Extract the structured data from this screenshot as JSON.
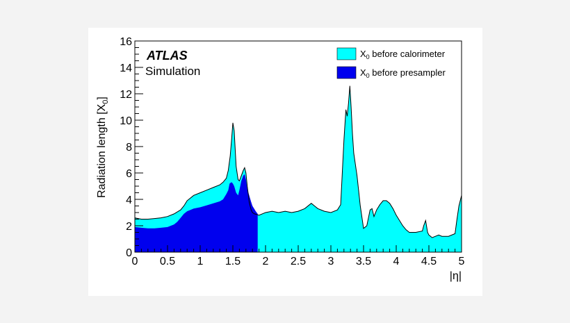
{
  "chart_data": {
    "type": "area",
    "xlabel": "|η|",
    "ylabel": "Radiation length [X",
    "ylabel_sub": "0",
    "ylabel_suffix": "]",
    "xlim": [
      0,
      5
    ],
    "ylim": [
      0,
      16
    ],
    "xticks": [
      "0",
      "0.5",
      "1",
      "1.5",
      "2",
      "2.5",
      "3",
      "3.5",
      "4",
      "4.5",
      "5"
    ],
    "yticks": [
      "0",
      "2",
      "4",
      "6",
      "8",
      "10",
      "12",
      "14",
      "16"
    ],
    "annotation_bold": "ATLAS",
    "annotation": "Simulation",
    "legend_position": "top-right",
    "colors": {
      "calorimeter": "#00ffff",
      "presampler": "#0000ee",
      "outline": "#000000"
    },
    "series": [
      {
        "name": "X",
        "name_sub": "0",
        "name_suffix": " before calorimeter",
        "x": [
          0,
          0.05,
          0.1,
          0.2,
          0.3,
          0.4,
          0.5,
          0.6,
          0.7,
          0.75,
          0.8,
          0.9,
          1.0,
          1.1,
          1.2,
          1.3,
          1.35,
          1.4,
          1.43,
          1.46,
          1.48,
          1.5,
          1.52,
          1.55,
          1.58,
          1.6,
          1.63,
          1.66,
          1.68,
          1.7,
          1.72,
          1.75,
          1.78,
          1.8,
          1.83,
          1.87,
          1.9,
          2.0,
          2.1,
          2.2,
          2.3,
          2.4,
          2.5,
          2.6,
          2.7,
          2.75,
          2.8,
          2.9,
          3.0,
          3.1,
          3.15,
          3.2,
          3.23,
          3.25,
          3.27,
          3.29,
          3.31,
          3.33,
          3.35,
          3.4,
          3.45,
          3.5,
          3.55,
          3.6,
          3.63,
          3.66,
          3.7,
          3.75,
          3.8,
          3.85,
          3.9,
          3.95,
          4.0,
          4.05,
          4.1,
          4.15,
          4.2,
          4.3,
          4.4,
          4.42,
          4.45,
          4.48,
          4.5,
          4.55,
          4.6,
          4.65,
          4.7,
          4.8,
          4.9,
          4.93,
          4.96,
          5.0
        ],
        "values": [
          2.6,
          2.55,
          2.5,
          2.5,
          2.55,
          2.6,
          2.7,
          2.9,
          3.2,
          3.5,
          3.9,
          4.3,
          4.5,
          4.7,
          4.9,
          5.1,
          5.3,
          5.6,
          6.2,
          7.3,
          8.5,
          9.8,
          9.2,
          6.5,
          5.5,
          5.4,
          5.8,
          6.2,
          6.4,
          6.0,
          5.0,
          3.8,
          3.2,
          3.0,
          2.9,
          2.85,
          2.8,
          3.0,
          3.1,
          3.0,
          3.1,
          3.0,
          3.1,
          3.3,
          3.7,
          3.5,
          3.3,
          3.1,
          3.0,
          3.2,
          3.6,
          8.5,
          10.8,
          10.3,
          11.3,
          12.6,
          11.0,
          9.0,
          7.5,
          5.8,
          3.5,
          1.8,
          2.0,
          3.2,
          3.3,
          2.7,
          3.2,
          3.6,
          3.9,
          3.9,
          3.7,
          3.3,
          2.8,
          2.4,
          2.0,
          1.7,
          1.5,
          1.5,
          1.6,
          2.0,
          2.4,
          1.5,
          1.3,
          1.1,
          1.2,
          1.3,
          1.2,
          1.2,
          1.4,
          2.5,
          3.5,
          4.3
        ]
      },
      {
        "name": "X",
        "name_sub": "0",
        "name_suffix": " before presampler",
        "x": [
          0,
          0.1,
          0.2,
          0.3,
          0.4,
          0.5,
          0.55,
          0.6,
          0.65,
          0.7,
          0.75,
          0.8,
          0.85,
          0.9,
          1.0,
          1.1,
          1.2,
          1.3,
          1.35,
          1.4,
          1.43,
          1.45,
          1.48,
          1.5,
          1.52,
          1.55,
          1.58,
          1.6,
          1.63,
          1.66,
          1.68,
          1.7,
          1.72,
          1.75,
          1.78,
          1.8,
          1.85,
          1.88
        ],
        "values": [
          1.9,
          1.85,
          1.8,
          1.8,
          1.85,
          1.9,
          2.0,
          2.1,
          2.3,
          2.6,
          2.9,
          3.1,
          3.2,
          3.3,
          3.4,
          3.55,
          3.7,
          3.85,
          4.0,
          4.4,
          4.7,
          5.2,
          5.3,
          5.2,
          5.0,
          4.5,
          4.3,
          4.7,
          5.4,
          5.8,
          5.9,
          5.5,
          4.8,
          4.3,
          3.8,
          3.5,
          3.1,
          2.9
        ]
      }
    ]
  }
}
